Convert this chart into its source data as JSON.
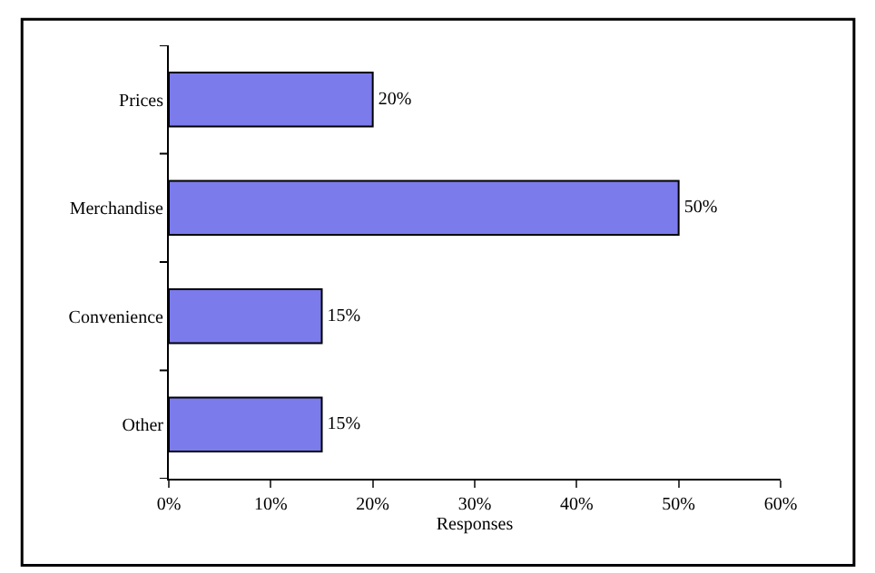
{
  "chart_data": {
    "type": "bar",
    "orientation": "horizontal",
    "xlabel": "Responses",
    "categories": [
      "Prices",
      "Merchandise",
      "Convenience",
      "Other"
    ],
    "values": [
      20,
      50,
      15,
      15
    ],
    "color": "#7b7bec",
    "value_labels": [
      "20%",
      "50%",
      "15%",
      "15%"
    ],
    "xlim": [
      0,
      60
    ],
    "xticks": [
      {
        "value": 0,
        "label": "0%"
      },
      {
        "value": 10,
        "label": "10%"
      },
      {
        "value": 20,
        "label": "20%"
      },
      {
        "value": 30,
        "label": "30%"
      },
      {
        "value": 40,
        "label": "40%"
      },
      {
        "value": 50,
        "label": "50%"
      },
      {
        "value": 60,
        "label": "60%"
      }
    ],
    "legend": false
  }
}
